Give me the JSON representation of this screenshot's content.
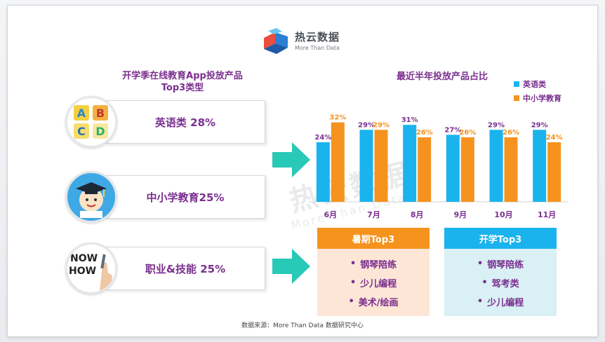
{
  "brand": {
    "name": "热云数据",
    "tagline": "More Than Data"
  },
  "watermark": {
    "name": "热云数据",
    "tagline": "More Than Data"
  },
  "left": {
    "title_line1": "开学季在线教育App投放产品",
    "title_line2": "Top3类型",
    "categories": [
      {
        "label": "英语类 28%",
        "icon": "abcd-blocks-icon"
      },
      {
        "label": "中小学教育25%",
        "icon": "student-graduate-icon"
      },
      {
        "label": "职业&技能 25%",
        "icon": "now-how-hand-icon"
      }
    ]
  },
  "chart_data": {
    "type": "bar",
    "title": "最近半年投放产品占比",
    "categories": [
      "6月",
      "7月",
      "8月",
      "9月",
      "10月",
      "11月"
    ],
    "series": [
      {
        "name": "英语类",
        "color": "#1ab3ee",
        "values": [
          24,
          29,
          31,
          27,
          29,
          29
        ],
        "labels": [
          "24%",
          "29%",
          "31%",
          "27%",
          "29%",
          "29%"
        ]
      },
      {
        "name": "中小学教育",
        "color": "#f5931e",
        "values": [
          32,
          29,
          26,
          26,
          26,
          24
        ],
        "labels": [
          "32%",
          "29%",
          "26%",
          "26%",
          "26%",
          "24%"
        ]
      }
    ],
    "ylim": [
      0,
      35
    ],
    "legend_position": "top-right",
    "grid": false
  },
  "panels": {
    "summer": {
      "title": "暑期Top3",
      "items": [
        "钢琴陪练",
        "少儿编程",
        "美术/绘画"
      ],
      "head_color": "#f5931e",
      "body_color": "#fde6d6"
    },
    "school": {
      "title": "开学Top3",
      "items": [
        "钢琴陪练",
        "驾考类",
        "少儿编程"
      ],
      "head_color": "#1ab3ee",
      "body_color": "#d9f0f4"
    }
  },
  "bullet": "•",
  "source": "数据来源：More Than Data 数据研究中心",
  "colors": {
    "accent_purple": "#7a2f8f",
    "arrow_teal": "#28c9b6"
  }
}
